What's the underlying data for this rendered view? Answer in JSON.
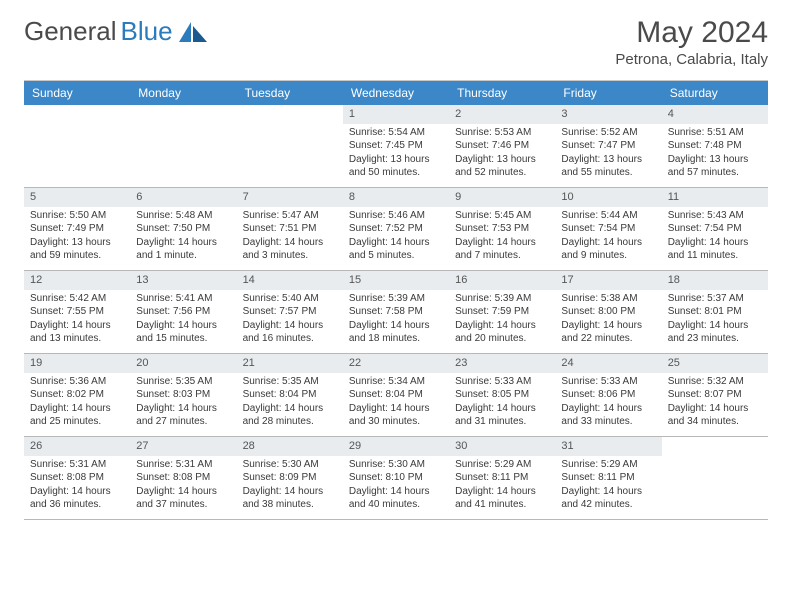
{
  "brand": {
    "part1": "General",
    "part2": "Blue"
  },
  "title": "May 2024",
  "location": "Petrona, Calabria, Italy",
  "colors": {
    "header_bg": "#3b87c8",
    "header_fg": "#ffffff",
    "daynum_bg": "#e8ecef",
    "border": "#b8b8b8",
    "text": "#3a3a3a",
    "brand_gray": "#4a4a4a",
    "brand_blue": "#2b7bbd"
  },
  "typography": {
    "title_fontsize": 30,
    "location_fontsize": 15,
    "dayhead_fontsize": 12,
    "cell_fontsize": 10
  },
  "day_headers": [
    "Sunday",
    "Monday",
    "Tuesday",
    "Wednesday",
    "Thursday",
    "Friday",
    "Saturday"
  ],
  "weeks": [
    [
      {
        "n": "",
        "sr": "",
        "ss": "",
        "dl1": "",
        "dl2": "",
        "empty": true
      },
      {
        "n": "",
        "sr": "",
        "ss": "",
        "dl1": "",
        "dl2": "",
        "empty": true
      },
      {
        "n": "",
        "sr": "",
        "ss": "",
        "dl1": "",
        "dl2": "",
        "empty": true
      },
      {
        "n": "1",
        "sr": "Sunrise: 5:54 AM",
        "ss": "Sunset: 7:45 PM",
        "dl1": "Daylight: 13 hours",
        "dl2": "and 50 minutes."
      },
      {
        "n": "2",
        "sr": "Sunrise: 5:53 AM",
        "ss": "Sunset: 7:46 PM",
        "dl1": "Daylight: 13 hours",
        "dl2": "and 52 minutes."
      },
      {
        "n": "3",
        "sr": "Sunrise: 5:52 AM",
        "ss": "Sunset: 7:47 PM",
        "dl1": "Daylight: 13 hours",
        "dl2": "and 55 minutes."
      },
      {
        "n": "4",
        "sr": "Sunrise: 5:51 AM",
        "ss": "Sunset: 7:48 PM",
        "dl1": "Daylight: 13 hours",
        "dl2": "and 57 minutes."
      }
    ],
    [
      {
        "n": "5",
        "sr": "Sunrise: 5:50 AM",
        "ss": "Sunset: 7:49 PM",
        "dl1": "Daylight: 13 hours",
        "dl2": "and 59 minutes."
      },
      {
        "n": "6",
        "sr": "Sunrise: 5:48 AM",
        "ss": "Sunset: 7:50 PM",
        "dl1": "Daylight: 14 hours",
        "dl2": "and 1 minute."
      },
      {
        "n": "7",
        "sr": "Sunrise: 5:47 AM",
        "ss": "Sunset: 7:51 PM",
        "dl1": "Daylight: 14 hours",
        "dl2": "and 3 minutes."
      },
      {
        "n": "8",
        "sr": "Sunrise: 5:46 AM",
        "ss": "Sunset: 7:52 PM",
        "dl1": "Daylight: 14 hours",
        "dl2": "and 5 minutes."
      },
      {
        "n": "9",
        "sr": "Sunrise: 5:45 AM",
        "ss": "Sunset: 7:53 PM",
        "dl1": "Daylight: 14 hours",
        "dl2": "and 7 minutes."
      },
      {
        "n": "10",
        "sr": "Sunrise: 5:44 AM",
        "ss": "Sunset: 7:54 PM",
        "dl1": "Daylight: 14 hours",
        "dl2": "and 9 minutes."
      },
      {
        "n": "11",
        "sr": "Sunrise: 5:43 AM",
        "ss": "Sunset: 7:54 PM",
        "dl1": "Daylight: 14 hours",
        "dl2": "and 11 minutes."
      }
    ],
    [
      {
        "n": "12",
        "sr": "Sunrise: 5:42 AM",
        "ss": "Sunset: 7:55 PM",
        "dl1": "Daylight: 14 hours",
        "dl2": "and 13 minutes."
      },
      {
        "n": "13",
        "sr": "Sunrise: 5:41 AM",
        "ss": "Sunset: 7:56 PM",
        "dl1": "Daylight: 14 hours",
        "dl2": "and 15 minutes."
      },
      {
        "n": "14",
        "sr": "Sunrise: 5:40 AM",
        "ss": "Sunset: 7:57 PM",
        "dl1": "Daylight: 14 hours",
        "dl2": "and 16 minutes."
      },
      {
        "n": "15",
        "sr": "Sunrise: 5:39 AM",
        "ss": "Sunset: 7:58 PM",
        "dl1": "Daylight: 14 hours",
        "dl2": "and 18 minutes."
      },
      {
        "n": "16",
        "sr": "Sunrise: 5:39 AM",
        "ss": "Sunset: 7:59 PM",
        "dl1": "Daylight: 14 hours",
        "dl2": "and 20 minutes."
      },
      {
        "n": "17",
        "sr": "Sunrise: 5:38 AM",
        "ss": "Sunset: 8:00 PM",
        "dl1": "Daylight: 14 hours",
        "dl2": "and 22 minutes."
      },
      {
        "n": "18",
        "sr": "Sunrise: 5:37 AM",
        "ss": "Sunset: 8:01 PM",
        "dl1": "Daylight: 14 hours",
        "dl2": "and 23 minutes."
      }
    ],
    [
      {
        "n": "19",
        "sr": "Sunrise: 5:36 AM",
        "ss": "Sunset: 8:02 PM",
        "dl1": "Daylight: 14 hours",
        "dl2": "and 25 minutes."
      },
      {
        "n": "20",
        "sr": "Sunrise: 5:35 AM",
        "ss": "Sunset: 8:03 PM",
        "dl1": "Daylight: 14 hours",
        "dl2": "and 27 minutes."
      },
      {
        "n": "21",
        "sr": "Sunrise: 5:35 AM",
        "ss": "Sunset: 8:04 PM",
        "dl1": "Daylight: 14 hours",
        "dl2": "and 28 minutes."
      },
      {
        "n": "22",
        "sr": "Sunrise: 5:34 AM",
        "ss": "Sunset: 8:04 PM",
        "dl1": "Daylight: 14 hours",
        "dl2": "and 30 minutes."
      },
      {
        "n": "23",
        "sr": "Sunrise: 5:33 AM",
        "ss": "Sunset: 8:05 PM",
        "dl1": "Daylight: 14 hours",
        "dl2": "and 31 minutes."
      },
      {
        "n": "24",
        "sr": "Sunrise: 5:33 AM",
        "ss": "Sunset: 8:06 PM",
        "dl1": "Daylight: 14 hours",
        "dl2": "and 33 minutes."
      },
      {
        "n": "25",
        "sr": "Sunrise: 5:32 AM",
        "ss": "Sunset: 8:07 PM",
        "dl1": "Daylight: 14 hours",
        "dl2": "and 34 minutes."
      }
    ],
    [
      {
        "n": "26",
        "sr": "Sunrise: 5:31 AM",
        "ss": "Sunset: 8:08 PM",
        "dl1": "Daylight: 14 hours",
        "dl2": "and 36 minutes."
      },
      {
        "n": "27",
        "sr": "Sunrise: 5:31 AM",
        "ss": "Sunset: 8:08 PM",
        "dl1": "Daylight: 14 hours",
        "dl2": "and 37 minutes."
      },
      {
        "n": "28",
        "sr": "Sunrise: 5:30 AM",
        "ss": "Sunset: 8:09 PM",
        "dl1": "Daylight: 14 hours",
        "dl2": "and 38 minutes."
      },
      {
        "n": "29",
        "sr": "Sunrise: 5:30 AM",
        "ss": "Sunset: 8:10 PM",
        "dl1": "Daylight: 14 hours",
        "dl2": "and 40 minutes."
      },
      {
        "n": "30",
        "sr": "Sunrise: 5:29 AM",
        "ss": "Sunset: 8:11 PM",
        "dl1": "Daylight: 14 hours",
        "dl2": "and 41 minutes."
      },
      {
        "n": "31",
        "sr": "Sunrise: 5:29 AM",
        "ss": "Sunset: 8:11 PM",
        "dl1": "Daylight: 14 hours",
        "dl2": "and 42 minutes."
      },
      {
        "n": "",
        "sr": "",
        "ss": "",
        "dl1": "",
        "dl2": "",
        "empty": true
      }
    ]
  ]
}
